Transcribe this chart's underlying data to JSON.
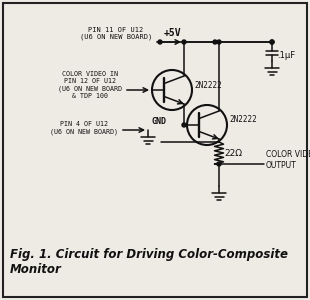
{
  "title": "Fig. 1. Circuit for Driving Color-Composite\nMonitor",
  "background_color": "#eeebe5",
  "border_color": "#222222",
  "line_color": "#111111",
  "text_color": "#111111",
  "fig_width": 3.1,
  "fig_height": 3.0,
  "dpi": 100,
  "labels": {
    "pin11": "PIN 11 OF U12\n(U6 ON NEW BOARD)",
    "color_video_in": "COLOR VIDEO IN\nPIN 12 OF U12\n(U6 ON NEW BOARD\n& TDP 100",
    "pin4": "PIN 4 OF U12\n(U6 ON NEW BOARD)",
    "gnd_label": "GND",
    "vcc": "+5V",
    "cap": ".1μF",
    "q1_label": "2N2222",
    "q2_label": "2N2222",
    "resistor": "22Ω",
    "output": "COLOR VIDEO\nOUTPUT"
  }
}
